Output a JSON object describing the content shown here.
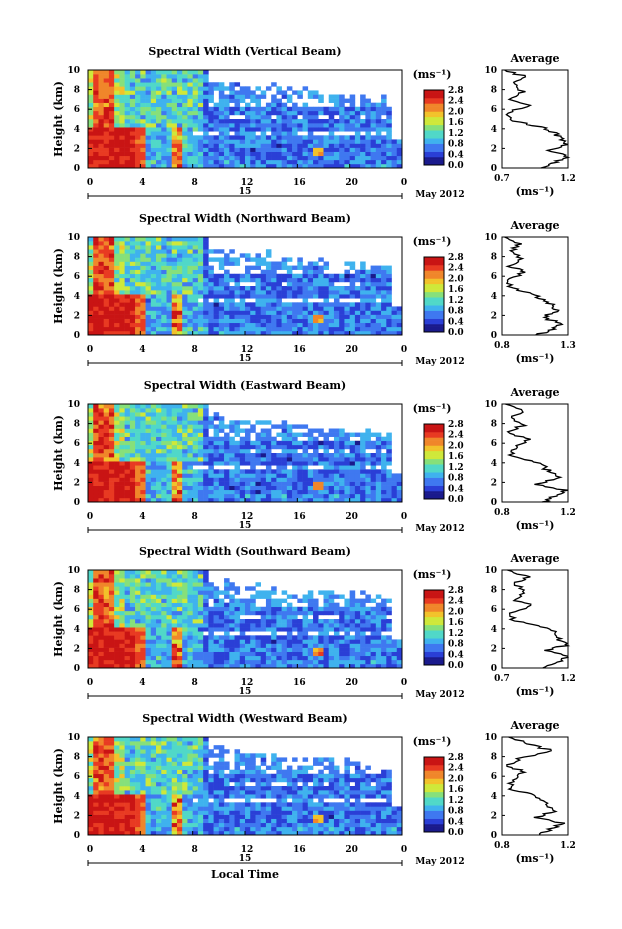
{
  "figure": {
    "date_label": "May 2012",
    "bottom_xlabel": "Local Time",
    "colorbar_unit": "(ms⁻¹)",
    "colorbar_ticks": [
      "0.0",
      "0.4",
      "0.8",
      "1.2",
      "1.6",
      "2.0",
      "2.4",
      "2.8"
    ],
    "colormap": [
      "#1a1a8c",
      "#2a3fd6",
      "#3f78f0",
      "#3fb2ee",
      "#50d8c8",
      "#86e07a",
      "#cfe83a",
      "#f2c22a",
      "#f0862a",
      "#e83a22",
      "#c91414"
    ]
  },
  "chart_data": [
    {
      "type": "heatmap",
      "title": "Spectral Width (Vertical Beam)",
      "ylabel": "Height (km)",
      "yticks": [
        "0",
        "2",
        "4",
        "6",
        "8",
        "10"
      ],
      "xticks": [
        "0",
        "4",
        "8",
        "12",
        "16",
        "20",
        "0"
      ],
      "day_label": "15",
      "xlim": [
        0,
        24
      ],
      "ylim": [
        0,
        10
      ],
      "clim": [
        0,
        2.8
      ],
      "average": {
        "title": "Average",
        "xlabel": "(ms⁻¹)",
        "xticks": [
          "0.7",
          "1.2"
        ],
        "xlim": [
          0.7,
          1.2
        ],
        "profile": [
          [
            1.0,
            0
          ],
          [
            1.1,
            0.6
          ],
          [
            1.2,
            1.2
          ],
          [
            1.05,
            1.8
          ],
          [
            1.18,
            2.4
          ],
          [
            1.15,
            3.0
          ],
          [
            1.1,
            3.6
          ],
          [
            1.0,
            4.2
          ],
          [
            0.78,
            4.8
          ],
          [
            0.74,
            5.6
          ],
          [
            0.9,
            6.4
          ],
          [
            0.76,
            7.0
          ],
          [
            0.85,
            7.8
          ],
          [
            0.78,
            8.6
          ],
          [
            0.88,
            9.3
          ],
          [
            0.72,
            10
          ]
        ]
      }
    },
    {
      "type": "heatmap",
      "title": "Spectral Width (Northward Beam)",
      "ylabel": "Height (km)",
      "yticks": [
        "0",
        "2",
        "4",
        "6",
        "8",
        "10"
      ],
      "xticks": [
        "0",
        "4",
        "8",
        "12",
        "16",
        "20",
        "0"
      ],
      "day_label": "15",
      "xlim": [
        0,
        24
      ],
      "ylim": [
        0,
        10
      ],
      "clim": [
        0,
        2.8
      ],
      "average": {
        "title": "Average",
        "xlabel": "(ms⁻¹)",
        "xticks": [
          "0.8",
          "1.3"
        ],
        "xlim": [
          0.8,
          1.3
        ],
        "profile": [
          [
            1.05,
            0
          ],
          [
            1.2,
            0.6
          ],
          [
            1.25,
            1.2
          ],
          [
            1.1,
            1.8
          ],
          [
            1.22,
            2.4
          ],
          [
            1.18,
            3.0
          ],
          [
            1.12,
            3.6
          ],
          [
            1.02,
            4.2
          ],
          [
            0.88,
            4.8
          ],
          [
            0.84,
            5.6
          ],
          [
            0.98,
            6.4
          ],
          [
            0.86,
            7.0
          ],
          [
            0.94,
            7.8
          ],
          [
            0.86,
            8.6
          ],
          [
            0.95,
            9.3
          ],
          [
            0.82,
            10
          ]
        ]
      }
    },
    {
      "type": "heatmap",
      "title": "Spectral Width (Eastward Beam)",
      "ylabel": "Height (km)",
      "yticks": [
        "0",
        "2",
        "4",
        "6",
        "8",
        "10"
      ],
      "xticks": [
        "0",
        "4",
        "8",
        "12",
        "16",
        "20",
        "0"
      ],
      "day_label": "15",
      "xlim": [
        0,
        24
      ],
      "ylim": [
        0,
        10
      ],
      "clim": [
        0,
        2.8
      ],
      "average": {
        "title": "Average",
        "xlabel": "(ms⁻¹)",
        "xticks": [
          "0.8",
          "1.2"
        ],
        "xlim": [
          0.8,
          1.2
        ],
        "profile": [
          [
            1.05,
            0
          ],
          [
            1.12,
            0.6
          ],
          [
            1.18,
            1.2
          ],
          [
            1.0,
            1.8
          ],
          [
            1.15,
            2.4
          ],
          [
            1.1,
            3.0
          ],
          [
            1.05,
            3.6
          ],
          [
            0.98,
            4.2
          ],
          [
            0.86,
            4.8
          ],
          [
            0.88,
            5.6
          ],
          [
            0.96,
            6.4
          ],
          [
            0.84,
            7.0
          ],
          [
            0.92,
            7.8
          ],
          [
            0.86,
            8.6
          ],
          [
            0.94,
            9.3
          ],
          [
            0.82,
            10
          ]
        ]
      }
    },
    {
      "type": "heatmap",
      "title": "Spectral Width (Southward Beam)",
      "ylabel": "Height (km)",
      "yticks": [
        "0",
        "2",
        "4",
        "6",
        "8",
        "10"
      ],
      "xticks": [
        "0",
        "4",
        "8",
        "12",
        "16",
        "20",
        "0"
      ],
      "day_label": "15",
      "xlim": [
        0,
        24
      ],
      "ylim": [
        0,
        10
      ],
      "clim": [
        0,
        2.8
      ],
      "average": {
        "title": "Average",
        "xlabel": "(ms⁻¹)",
        "xticks": [
          "0.7",
          "1.2"
        ],
        "xlim": [
          0.7,
          1.2
        ],
        "profile": [
          [
            1.0,
            0
          ],
          [
            1.12,
            0.6
          ],
          [
            1.22,
            1.2
          ],
          [
            1.05,
            1.8
          ],
          [
            1.2,
            2.4
          ],
          [
            1.12,
            3.0
          ],
          [
            1.1,
            3.6
          ],
          [
            1.0,
            4.2
          ],
          [
            0.8,
            4.8
          ],
          [
            0.76,
            5.6
          ],
          [
            0.92,
            6.4
          ],
          [
            0.78,
            7.0
          ],
          [
            0.88,
            7.8
          ],
          [
            0.8,
            8.6
          ],
          [
            0.9,
            9.3
          ],
          [
            0.74,
            10
          ]
        ]
      }
    },
    {
      "type": "heatmap",
      "title": "Spectral Width (Westward Beam)",
      "ylabel": "Height (km)",
      "yticks": [
        "0",
        "2",
        "4",
        "6",
        "8",
        "10"
      ],
      "xticks": [
        "0",
        "4",
        "8",
        "12",
        "16",
        "20",
        "0"
      ],
      "day_label": "15",
      "xlim": [
        0,
        24
      ],
      "ylim": [
        0,
        10
      ],
      "clim": [
        0,
        2.8
      ],
      "average": {
        "title": "Average",
        "xlabel": "(ms⁻¹)",
        "xticks": [
          "0.8",
          "1.2"
        ],
        "xlim": [
          0.8,
          1.2
        ],
        "profile": [
          [
            1.02,
            0
          ],
          [
            1.1,
            0.6
          ],
          [
            1.16,
            1.2
          ],
          [
            1.0,
            1.8
          ],
          [
            1.12,
            2.4
          ],
          [
            1.08,
            3.0
          ],
          [
            1.04,
            3.6
          ],
          [
            0.96,
            4.2
          ],
          [
            0.84,
            4.8
          ],
          [
            0.86,
            5.6
          ],
          [
            0.94,
            6.4
          ],
          [
            0.84,
            7.0
          ],
          [
            0.9,
            7.8
          ],
          [
            1.1,
            8.6
          ],
          [
            0.96,
            9.3
          ],
          [
            0.84,
            10
          ]
        ]
      }
    }
  ]
}
